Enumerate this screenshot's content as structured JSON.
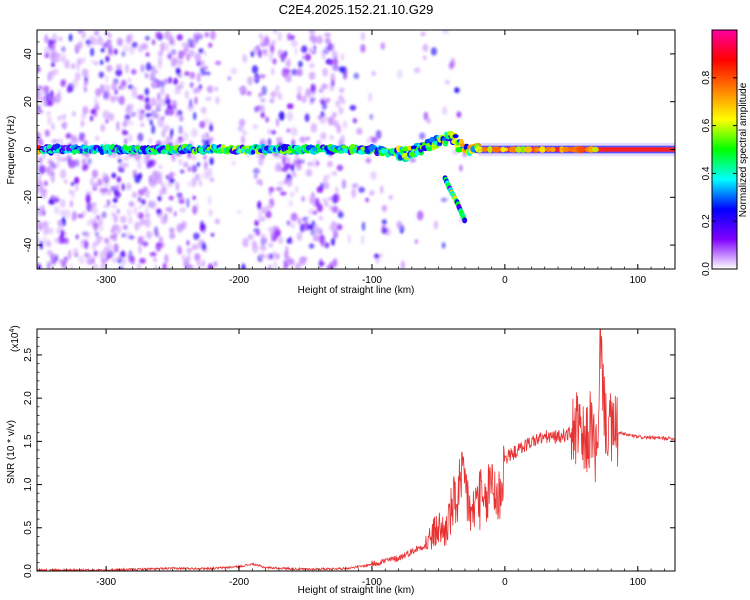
{
  "title": "C2E4.2025.152.21.10.G29",
  "chart_data": [
    {
      "type": "heatmap",
      "xlabel": "Height of straight line (km)",
      "ylabel": "Frequency (Hz)",
      "xlim": [
        -352,
        128
      ],
      "ylim": [
        -50,
        50
      ],
      "x_ticks": [
        -300,
        -200,
        -100,
        0,
        100
      ],
      "y_ticks": [
        -40,
        -20,
        0,
        20,
        40
      ],
      "colorbar": {
        "label": "Normalized spectral amplitude",
        "range": [
          0,
          1
        ],
        "ticks": [
          "0.0",
          "0.2",
          "0.4",
          "0.6",
          "0.8"
        ],
        "colors": [
          "#ffffff",
          "#8000ff",
          "#0000ff",
          "#00ffff",
          "#00ff00",
          "#ffff00",
          "#ff8000",
          "#ff0000",
          "#ff00a0"
        ]
      },
      "ridge": [
        {
          "x": -350,
          "f": 0,
          "amp": 0.35
        },
        {
          "x": -300,
          "f": 0,
          "amp": 0.4
        },
        {
          "x": -250,
          "f": 0,
          "amp": 0.45
        },
        {
          "x": -200,
          "f": 0,
          "amp": 0.5
        },
        {
          "x": -150,
          "f": 0,
          "amp": 0.45
        },
        {
          "x": -100,
          "f": 0,
          "amp": 0.45
        },
        {
          "x": -75,
          "f": -2,
          "amp": 0.55
        },
        {
          "x": -50,
          "f": 3,
          "amp": 0.5
        },
        {
          "x": -40,
          "f": 5,
          "amp": 0.55
        },
        {
          "x": -30,
          "f": 0,
          "amp": 0.6
        },
        {
          "x": 0,
          "f": 0,
          "amp": 0.8
        },
        {
          "x": 50,
          "f": 0,
          "amp": 0.9
        },
        {
          "x": 128,
          "f": 0,
          "amp": 0.95
        }
      ],
      "branch": [
        {
          "x": -45,
          "f": -12
        },
        {
          "x": -40,
          "f": -18
        },
        {
          "x": -36,
          "f": -22
        },
        {
          "x": -30,
          "f": -30
        }
      ]
    },
    {
      "type": "line",
      "xlabel": "Height of straight line (km)",
      "ylabel": "SNR (10 * v/v)",
      "y_multiplier": "(x10",
      "y_multiplier_exp": "4",
      "y_multiplier_close": ")",
      "xlim": [
        -352,
        128
      ],
      "ylim": [
        0,
        2.8
      ],
      "x_ticks": [
        -300,
        -200,
        -100,
        0,
        100
      ],
      "y_ticks": [
        "0.0",
        "0.5",
        "1.0",
        "1.5",
        "2.0",
        "2.5"
      ],
      "series": [
        {
          "color": "#e83232",
          "x": [
            -352,
            -300,
            -250,
            -220,
            -200,
            -190,
            -180,
            -150,
            -120,
            -105,
            -95,
            -80,
            -60,
            -50,
            -45,
            -40,
            -35,
            -30,
            -25,
            -20,
            -15,
            -10,
            -5,
            0,
            10,
            20,
            30,
            40,
            50,
            55,
            60,
            65,
            70,
            72,
            75,
            80,
            85,
            100,
            128
          ],
          "y": [
            0.01,
            0.01,
            0.03,
            0.03,
            0.05,
            0.08,
            0.04,
            0.02,
            0.03,
            0.06,
            0.1,
            0.15,
            0.3,
            0.5,
            0.45,
            0.7,
            0.9,
            1.0,
            0.6,
            0.9,
            0.7,
            1.1,
            0.8,
            1.3,
            1.4,
            1.5,
            1.55,
            1.55,
            1.6,
            1.65,
            1.4,
            1.7,
            1.2,
            2.8,
            1.8,
            1.6,
            1.6,
            1.55,
            1.53
          ]
        }
      ]
    }
  ]
}
